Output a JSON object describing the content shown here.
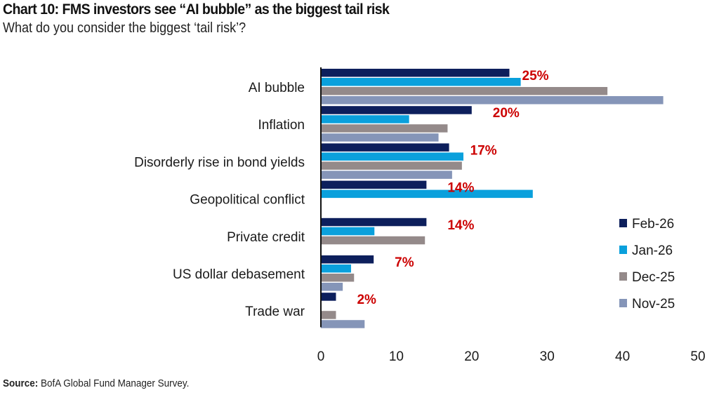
{
  "chart_data": {
    "type": "bar",
    "orientation": "horizontal",
    "title": "Chart 10: FMS investors see “AI bubble” as the biggest tail risk",
    "subtitle": "What do you consider the biggest ‘tail risk’?",
    "xlabel": "",
    "ylabel": "",
    "xlim": [
      0,
      50
    ],
    "xticks": [
      0,
      10,
      20,
      30,
      40,
      50
    ],
    "grid": false,
    "legend_position": "right",
    "categories": [
      "AI bubble",
      "Inflation",
      "Disorderly rise in bond yields",
      "Geopolitical conflict",
      "Private credit",
      "US dollar debasement",
      "Trade war"
    ],
    "series": [
      {
        "name": "Feb-26",
        "color": "#0d1f5c",
        "values": [
          25,
          20,
          17,
          14,
          14,
          7,
          2
        ]
      },
      {
        "name": "Jan-26",
        "color": "#0aa0dc",
        "values": [
          26.5,
          11.7,
          18.9,
          28.1,
          7.1,
          4.0,
          0
        ]
      },
      {
        "name": "Dec-25",
        "color": "#948a8a",
        "values": [
          38,
          16.8,
          18.7,
          null,
          13.8,
          4.4,
          2.0
        ]
      },
      {
        "name": "Nov-25",
        "color": "#8595b8",
        "values": [
          45.4,
          15.6,
          17.4,
          null,
          null,
          2.9,
          5.8
        ]
      }
    ],
    "data_labels": [
      "25%",
      "20%",
      "17%",
      "14%",
      "14%",
      "7%",
      "2%"
    ],
    "data_label_color": "#cc0000",
    "source_label": "Source:",
    "source_text": "BofA Global Fund Manager Survey."
  }
}
